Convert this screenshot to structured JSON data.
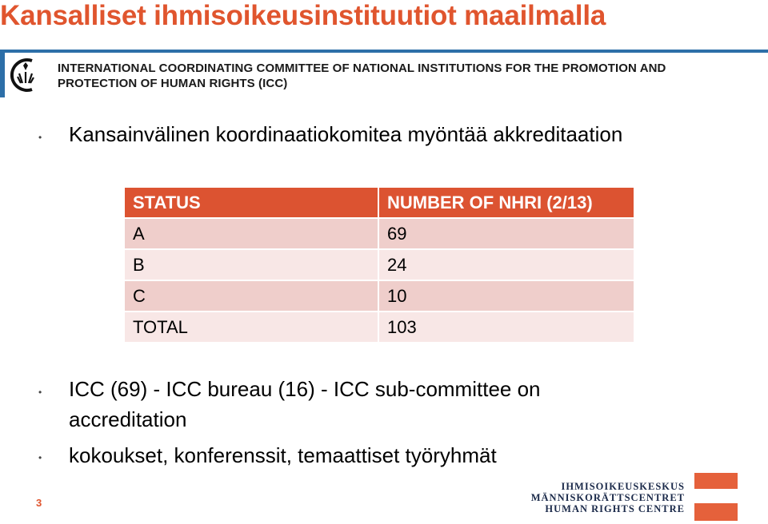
{
  "title": "Kansalliset ihmisoikeusinstituutiot maailmalla",
  "banner": {
    "line1": "INTERNATIONAL COORDINATING COMMITTEE OF NATIONAL INSTITUTIONS FOR THE PROMOTION AND",
    "line2": "PROTECTION OF HUMAN RIGHTS (ICC)",
    "accent_color": "#2d6fa8"
  },
  "bullets": {
    "b1": "Kansainvälinen koordinaatiokomitea myöntää akkreditaation",
    "b2_line1": "ICC (69) - ICC bureau (16) - ICC sub-committee on",
    "b2_line2": "accreditation",
    "b3": "kokoukset, konferenssit, temaattiset työryhmät"
  },
  "table": {
    "headers": [
      "STATUS",
      "NUMBER OF NHRI (2/13)"
    ],
    "rows": [
      [
        "A",
        "69"
      ],
      [
        "B",
        "24"
      ],
      [
        "C",
        "10"
      ],
      [
        "TOTAL",
        "103"
      ]
    ],
    "header_color": "#dc5331"
  },
  "page_number": "3",
  "footer": {
    "line1": "IHMISOIKEUSKESKUS",
    "line2": "MÄNNISKORÄTTSCENTRET",
    "line3": "HUMAN RIGHTS CENTRE"
  },
  "colors": {
    "title": "#e0552e",
    "accent_square": "#e5613b"
  }
}
